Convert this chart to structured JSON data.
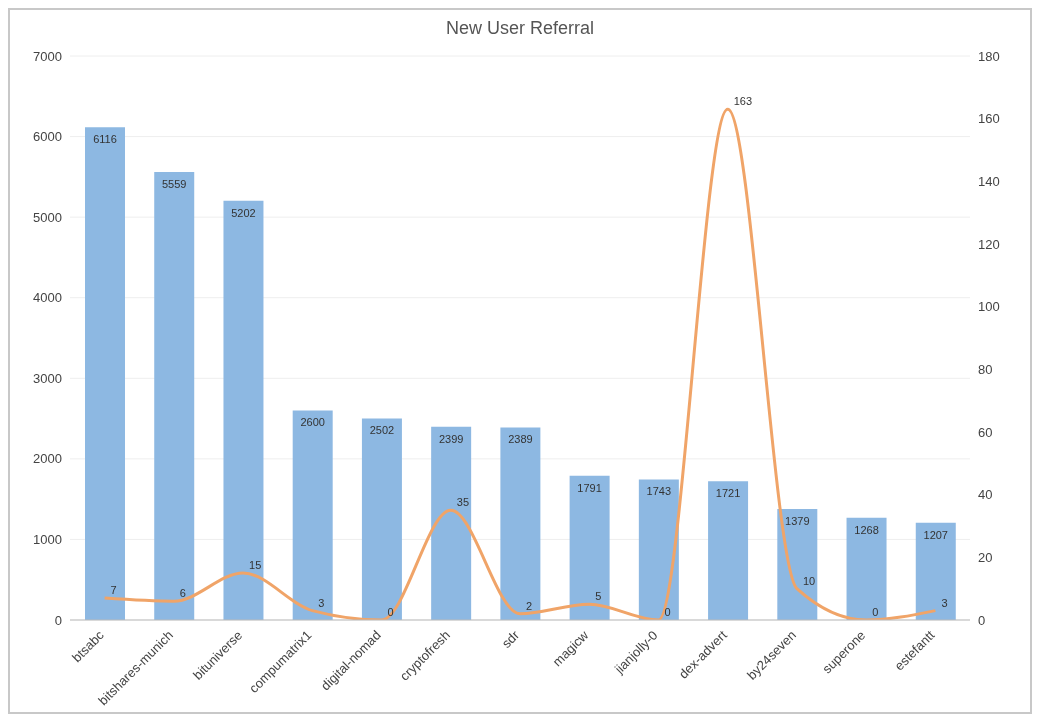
{
  "chart_data": {
    "type": "bar",
    "title": "New User Referral",
    "categories": [
      "btsabc",
      "bitshares-munich",
      "bituniverse",
      "compumatrix1",
      "digital-nomad",
      "cryptofresh",
      "sdr",
      "magicw",
      "jianjolly-0",
      "dex-advert",
      "by24seven",
      "superone",
      "estefantt"
    ],
    "series": [
      {
        "color": "#8db8e2",
        "values": [
          6116,
          5559,
          5202,
          2600,
          2502,
          2399,
          2389,
          1791,
          1743,
          1721,
          1379,
          1268,
          1207
        ]
      },
      {
        "type": "line",
        "axis": "y2",
        "color": "#f0a468",
        "values": [
          7,
          6,
          15,
          3,
          0,
          35,
          2,
          5,
          0,
          163,
          10,
          0,
          3
        ]
      }
    ],
    "ylim": [
      0,
      7000
    ],
    "yticks": [
      0,
      1000,
      2000,
      3000,
      4000,
      5000,
      6000,
      7000
    ],
    "y2lim": [
      0,
      180
    ],
    "y2ticks": [
      0,
      20,
      40,
      60,
      80,
      100,
      120,
      140,
      160,
      180
    ],
    "grid": "y",
    "legend": false,
    "data_labels": true,
    "marker": "none"
  }
}
